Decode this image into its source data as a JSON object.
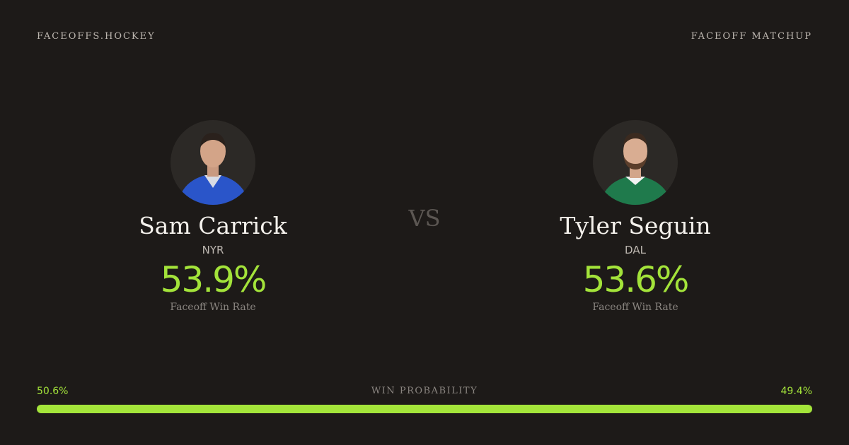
{
  "header": {
    "brand": "FACEOFFS.HOCKEY",
    "label": "FACEOFF MATCHUP"
  },
  "players": [
    {
      "name": "Sam Carrick",
      "team": "NYR",
      "win_rate": "53.9%",
      "rate_label": "Faceoff Win Rate"
    },
    {
      "name": "Tyler Seguin",
      "team": "DAL",
      "win_rate": "53.6%",
      "rate_label": "Faceoff Win Rate"
    }
  ],
  "vs": "VS",
  "probability": {
    "label": "WIN PROBABILITY",
    "left": "50.6%",
    "right": "49.4%"
  }
}
